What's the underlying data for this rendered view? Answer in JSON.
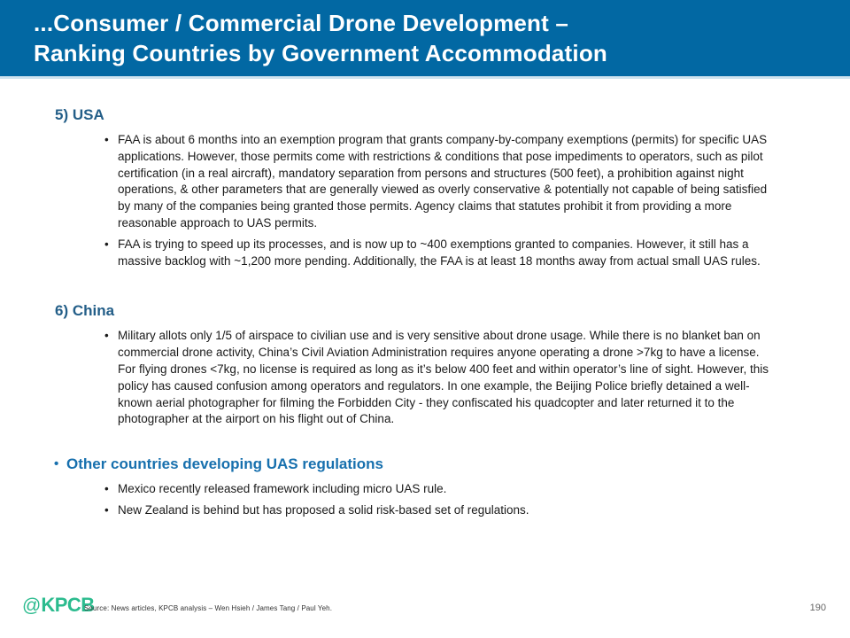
{
  "header": {
    "title_line1": "...Consumer / Commercial Drone Development –",
    "title_line2": "Ranking Countries by Government Accommodation"
  },
  "sections": [
    {
      "heading": "5) USA",
      "bullets": [
        "FAA is about 6 months into an exemption program that grants company-by-company exemptions (permits) for specific UAS applications. However, those permits come with restrictions & conditions that pose impediments to operators, such as pilot certification (in a real aircraft), mandatory separation from persons and structures (500 feet), a prohibition against night operations, & other parameters that are generally viewed as overly conservative & potentially not capable of being satisfied by many of the companies being granted those permits. Agency claims that statutes prohibit it from providing a more reasonable approach to UAS permits.",
        "FAA is trying to speed up its processes, and is now up to ~400 exemptions granted to companies. However, it still has a massive backlog with ~1,200 more pending. Additionally, the FAA is at least 18 months away from actual small UAS rules."
      ]
    },
    {
      "heading": "6) China",
      "bullets": [
        "Military allots only 1/5 of airspace to civilian use and is very sensitive about drone usage. While there is no blanket ban on commercial drone activity, China’s Civil Aviation Administration requires anyone operating a drone >7kg to have a license. For flying drones <7kg, no license is required as long as it’s below 400 feet and within operator’s line of sight. However, this policy has caused confusion among operators and regulators. In one example, the Beijing Police briefly detained a well-known aerial photographer for filming the Forbidden City - they confiscated his quadcopter and later returned it to the photographer at the airport on his flight out of China."
      ]
    },
    {
      "heading": "Other countries developing UAS regulations",
      "bullets": [
        "Mexico recently released framework including micro UAS rule.",
        "New Zealand is behind but has proposed a solid risk-based set of regulations."
      ]
    }
  ],
  "footer": {
    "logo_at": "@",
    "logo_text": "KPCB",
    "source": "Source: News articles, KPCB analysis – Wen Hsieh / James Tang / Paul Yeh.",
    "page_number": "190"
  },
  "colors": {
    "header_background": "#0268A3",
    "section_heading_blue": "#235E88",
    "other_heading_blue": "#1770AE",
    "body_text": "#1a1a1a",
    "logo_green": "#2BBB8E"
  }
}
